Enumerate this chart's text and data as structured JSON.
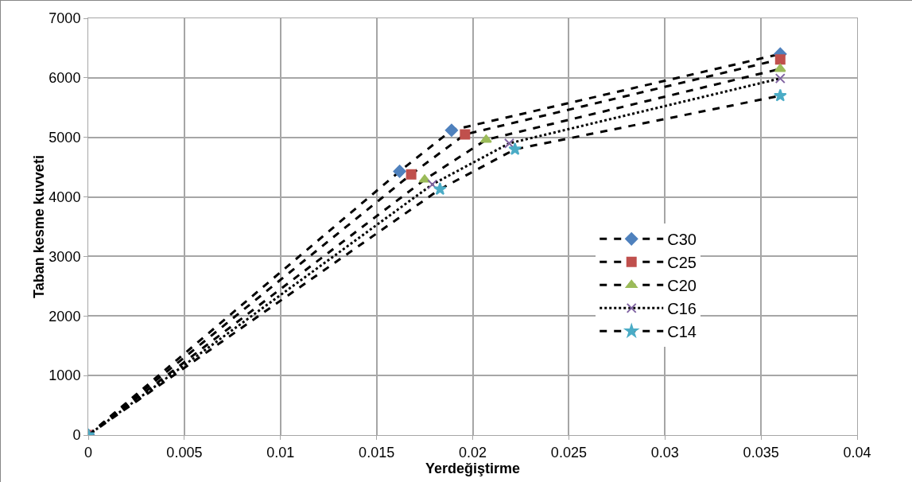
{
  "chart_data": {
    "type": "line",
    "xlabel": "Yerdeğiştirme",
    "ylabel": "Taban kesme kuvveti",
    "xlim": [
      0,
      0.04
    ],
    "xticks": [
      0,
      0.005,
      0.01,
      0.015,
      0.02,
      0.025,
      0.03,
      0.035,
      0.04
    ],
    "ylim": [
      0,
      7000
    ],
    "yticks": [
      0,
      1000,
      2000,
      3000,
      4000,
      5000,
      6000,
      7000
    ],
    "grid": true,
    "legend": "right",
    "series": [
      {
        "name": "C30",
        "color": "#4f81bd",
        "marker": "diamond",
        "line_style": "dashed",
        "x": [
          0,
          0.0162,
          0.0189,
          0.036
        ],
        "values": [
          0,
          4430,
          5120,
          6400
        ]
      },
      {
        "name": "C25",
        "color": "#c0504d",
        "marker": "square",
        "line_style": "dashed",
        "x": [
          0,
          0.0168,
          0.0196,
          0.036
        ],
        "values": [
          0,
          4380,
          5050,
          6310
        ]
      },
      {
        "name": "C20",
        "color": "#9bbb59",
        "marker": "triangle",
        "line_style": "dashed",
        "x": [
          0,
          0.0175,
          0.0207,
          0.036
        ],
        "values": [
          0,
          4290,
          4960,
          6150
        ]
      },
      {
        "name": "C16",
        "color": "#8064a2",
        "marker": "cross",
        "line_style": "dotted",
        "x": [
          0,
          0.0179,
          0.0219,
          0.036
        ],
        "values": [
          0,
          4210,
          4900,
          5990
        ]
      },
      {
        "name": "C14",
        "color": "#4bacc6",
        "marker": "star",
        "line_style": "dashed",
        "x": [
          0,
          0.0183,
          0.0222,
          0.036
        ],
        "values": [
          0,
          4130,
          4800,
          5700
        ]
      }
    ]
  }
}
